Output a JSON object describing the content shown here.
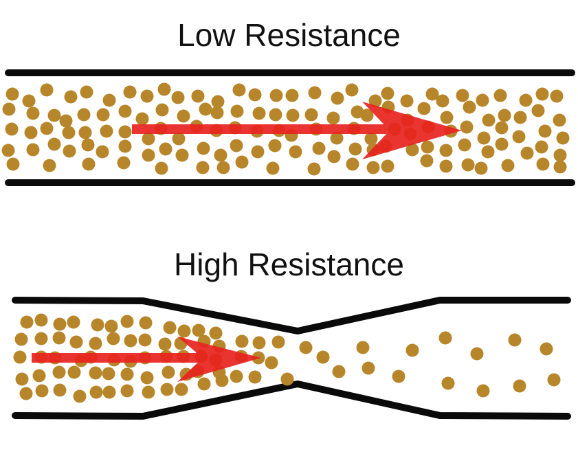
{
  "diagram": {
    "top_panel": {
      "title": "Low Resistance"
    },
    "bottom_panel": {
      "title": "High Resistance"
    },
    "colors": {
      "wall": "#0a0a0a",
      "particle": "#b8862a",
      "arrow": "#e8231f"
    }
  }
}
